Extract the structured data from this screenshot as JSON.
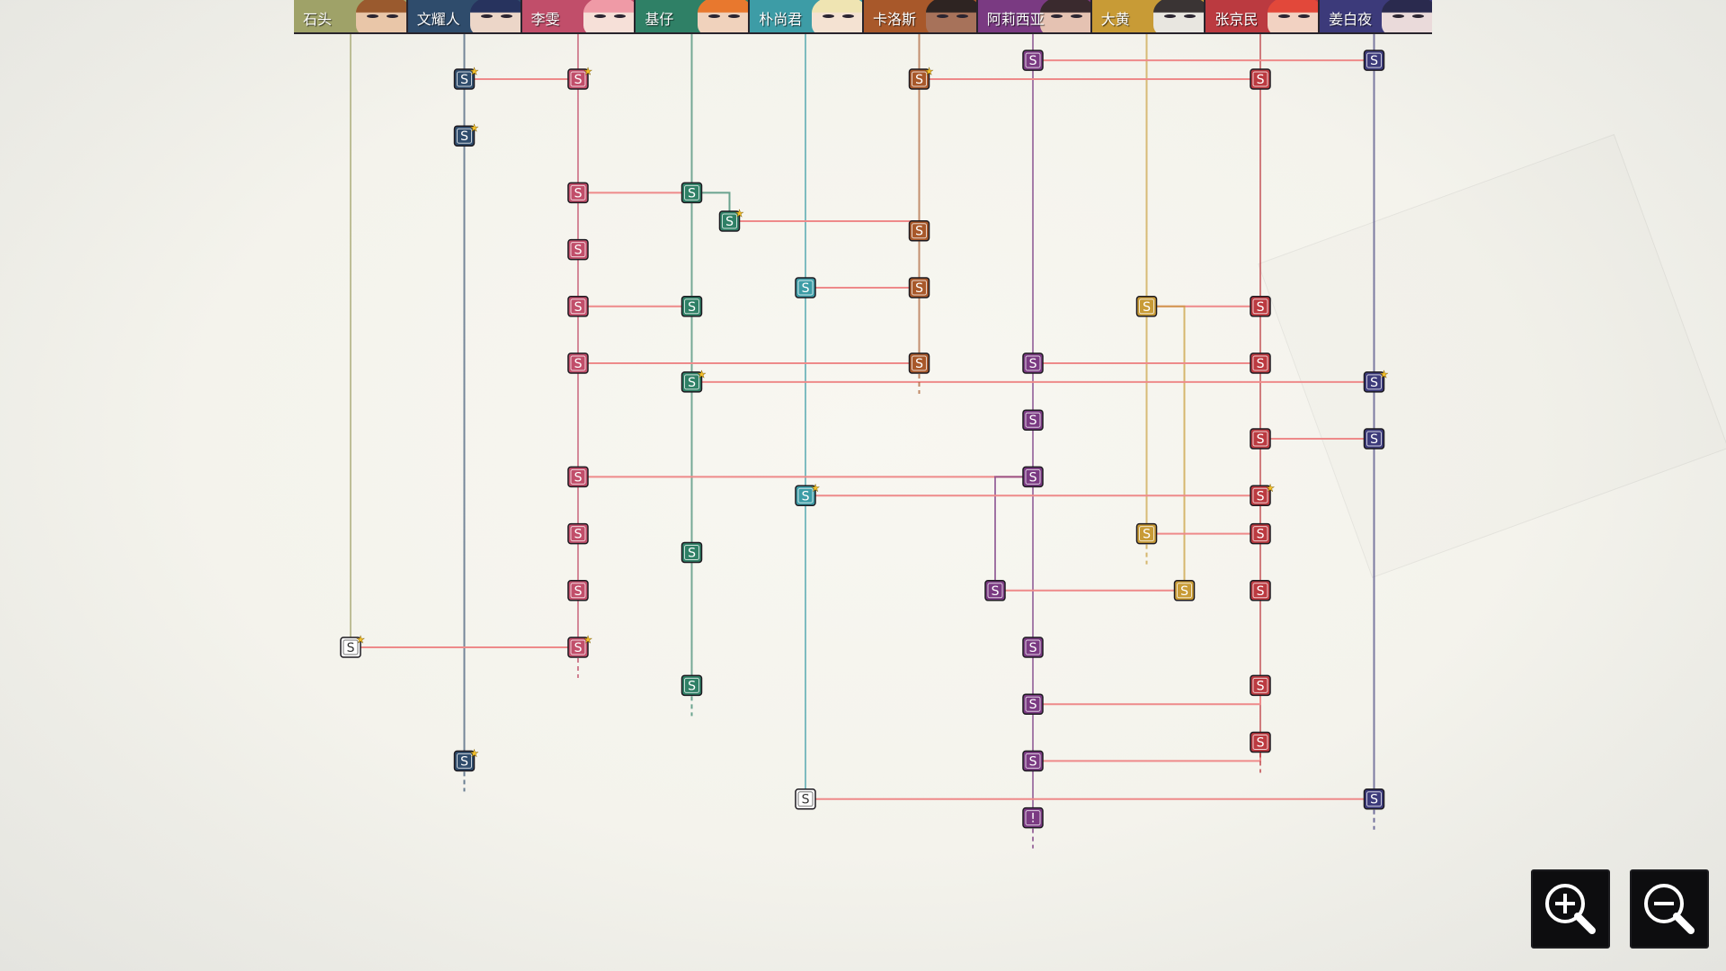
{
  "characters": [
    {
      "id": "shitou",
      "name": "石头",
      "color": "#9fa268",
      "hair": "#9a5a2e",
      "skin": "#e9c6a8"
    },
    {
      "id": "wenyao",
      "name": "文耀人",
      "color": "#2f4c6c",
      "hair": "#27335e",
      "skin": "#ecd6c8"
    },
    {
      "id": "liwen",
      "name": "李雯",
      "color": "#c14e6a",
      "hair": "#ef9aa6",
      "skin": "#f6e0d8"
    },
    {
      "id": "jizai",
      "name": "基仔",
      "color": "#2f8066",
      "hair": "#e8782e",
      "skin": "#f0d2bc"
    },
    {
      "id": "piao",
      "name": "朴尚君",
      "color": "#3d9ca6",
      "hair": "#efe4b2",
      "skin": "#f4e2d2"
    },
    {
      "id": "carlos",
      "name": "卡洛斯",
      "color": "#a8582a",
      "hair": "#2e2422",
      "skin": "#a7725a"
    },
    {
      "id": "alicia",
      "name": "阿莉西亚",
      "color": "#7a3a82",
      "hair": "#3a2a2e",
      "skin": "#e5c2b2"
    },
    {
      "id": "dahuang",
      "name": "大黄",
      "color": "#c89b36",
      "hair": "#3a3434",
      "skin": "#e8e6e0"
    },
    {
      "id": "zhang",
      "name": "张京民",
      "color": "#bb3a40",
      "hair": "#e2483a",
      "skin": "#f2d2c2"
    },
    {
      "id": "jiang",
      "name": "姜白夜",
      "color": "#3c3a7a",
      "hair": "#2a2a4e",
      "skin": "#eadada"
    }
  ],
  "colors": {
    "link": "#ee8a8a",
    "star": "#f4c02a",
    "node_text": "#ffffff",
    "plain_node_fill": "#ffffff",
    "plain_node_text": "#333333"
  },
  "node_label": "S",
  "alert_label": "!",
  "nodes": [
    {
      "id": "w1",
      "char": "wenyao",
      "row": 0,
      "star": true
    },
    {
      "id": "w2",
      "char": "wenyao",
      "row": 1,
      "star": true
    },
    {
      "id": "w3",
      "char": "wenyao",
      "row": 12,
      "star": true
    },
    {
      "id": "l1",
      "char": "liwen",
      "row": 0,
      "star": true
    },
    {
      "id": "l2",
      "char": "liwen",
      "row": 2
    },
    {
      "id": "l3",
      "char": "liwen",
      "row": 3
    },
    {
      "id": "l4",
      "char": "liwen",
      "row": 4
    },
    {
      "id": "l5",
      "char": "liwen",
      "row": 5
    },
    {
      "id": "l6",
      "char": "liwen",
      "row": 7
    },
    {
      "id": "l7",
      "char": "liwen",
      "row": 8
    },
    {
      "id": "l8",
      "char": "liwen",
      "row": 9
    },
    {
      "id": "l9",
      "char": "liwen",
      "row": 10,
      "star": true
    },
    {
      "id": "j1",
      "char": "jizai",
      "row": 2
    },
    {
      "id": "j2",
      "char": "jizai",
      "row": 2.5,
      "star": true,
      "offset": 1
    },
    {
      "id": "j3",
      "char": "jizai",
      "row": 4
    },
    {
      "id": "j4",
      "char": "jizai",
      "row": 5.33,
      "star": true
    },
    {
      "id": "j5",
      "char": "jizai",
      "row": 8.33
    },
    {
      "id": "j6",
      "char": "jizai",
      "row": 10.67
    },
    {
      "id": "p1",
      "char": "piao",
      "row": 3.67
    },
    {
      "id": "p2",
      "char": "piao",
      "row": 7.33,
      "star": true
    },
    {
      "id": "p3",
      "char": "piao",
      "row": 12.67,
      "plain": true
    },
    {
      "id": "c1",
      "char": "carlos",
      "row": 0,
      "star": true
    },
    {
      "id": "c2",
      "char": "carlos",
      "row": 2.67
    },
    {
      "id": "c3",
      "char": "carlos",
      "row": 3.67
    },
    {
      "id": "c4",
      "char": "carlos",
      "row": 5
    },
    {
      "id": "a1",
      "char": "alicia",
      "row": -0.33
    },
    {
      "id": "a2",
      "char": "alicia",
      "row": 5
    },
    {
      "id": "a3",
      "char": "alicia",
      "row": 6
    },
    {
      "id": "a4",
      "char": "alicia",
      "row": 7
    },
    {
      "id": "a5",
      "char": "alicia",
      "row": 9,
      "offset": -1
    },
    {
      "id": "a6",
      "char": "alicia",
      "row": 10
    },
    {
      "id": "a7",
      "char": "alicia",
      "row": 11
    },
    {
      "id": "a8",
      "char": "alicia",
      "row": 12
    },
    {
      "id": "a9",
      "char": "alicia",
      "row": 13,
      "alert": true
    },
    {
      "id": "d1",
      "char": "dahuang",
      "row": 4
    },
    {
      "id": "d2",
      "char": "dahuang",
      "row": 8
    },
    {
      "id": "d3",
      "char": "dahuang",
      "row": 9,
      "offset": 1
    },
    {
      "id": "z1",
      "char": "zhang",
      "row": 0
    },
    {
      "id": "z2",
      "char": "zhang",
      "row": 4
    },
    {
      "id": "z3",
      "char": "zhang",
      "row": 5
    },
    {
      "id": "z4",
      "char": "zhang",
      "row": 6.33
    },
    {
      "id": "z5",
      "char": "zhang",
      "row": 7.33,
      "star": true
    },
    {
      "id": "z6",
      "char": "zhang",
      "row": 8
    },
    {
      "id": "z7",
      "char": "zhang",
      "row": 9
    },
    {
      "id": "z8",
      "char": "zhang",
      "row": 10.67
    },
    {
      "id": "z9",
      "char": "zhang",
      "row": 11.67
    },
    {
      "id": "b1",
      "char": "jiang",
      "row": -0.33
    },
    {
      "id": "b2",
      "char": "jiang",
      "row": 5.33,
      "star": true
    },
    {
      "id": "b3",
      "char": "jiang",
      "row": 6.33
    },
    {
      "id": "b4",
      "char": "jiang",
      "row": 12.67
    },
    {
      "id": "s1",
      "char": "shitou",
      "row": 10,
      "star": true,
      "plain": true
    }
  ],
  "links": [
    [
      "w1",
      "l1"
    ],
    [
      "c1",
      "z1"
    ],
    [
      "a1",
      "b1"
    ],
    [
      "l2",
      "j1"
    ],
    [
      "j1",
      "j2"
    ],
    [
      "j2",
      "c2"
    ],
    [
      "p1",
      "c3"
    ],
    [
      "l4",
      "j3"
    ],
    [
      "d1",
      "z2"
    ],
    [
      "d1",
      "d3"
    ],
    [
      "l5",
      "c4"
    ],
    [
      "a2",
      "z3"
    ],
    [
      "j4",
      "b2"
    ],
    [
      "z4",
      "b3"
    ],
    [
      "l6",
      "a4"
    ],
    [
      "a4",
      "a5"
    ],
    [
      "p2",
      "z5"
    ],
    [
      "d2",
      "z6"
    ],
    [
      "a5",
      "d3"
    ],
    [
      "s1",
      "l9"
    ],
    [
      "a7",
      "z8"
    ],
    [
      "a8",
      "z9"
    ],
    [
      "p3",
      "b4"
    ]
  ],
  "tails": [
    "l9",
    "j6",
    "w3",
    "c4",
    "d2",
    "z9",
    "b4",
    "a9"
  ],
  "zoom": {
    "in_icon": "zoom-in-icon",
    "out_icon": "zoom-out-icon"
  }
}
